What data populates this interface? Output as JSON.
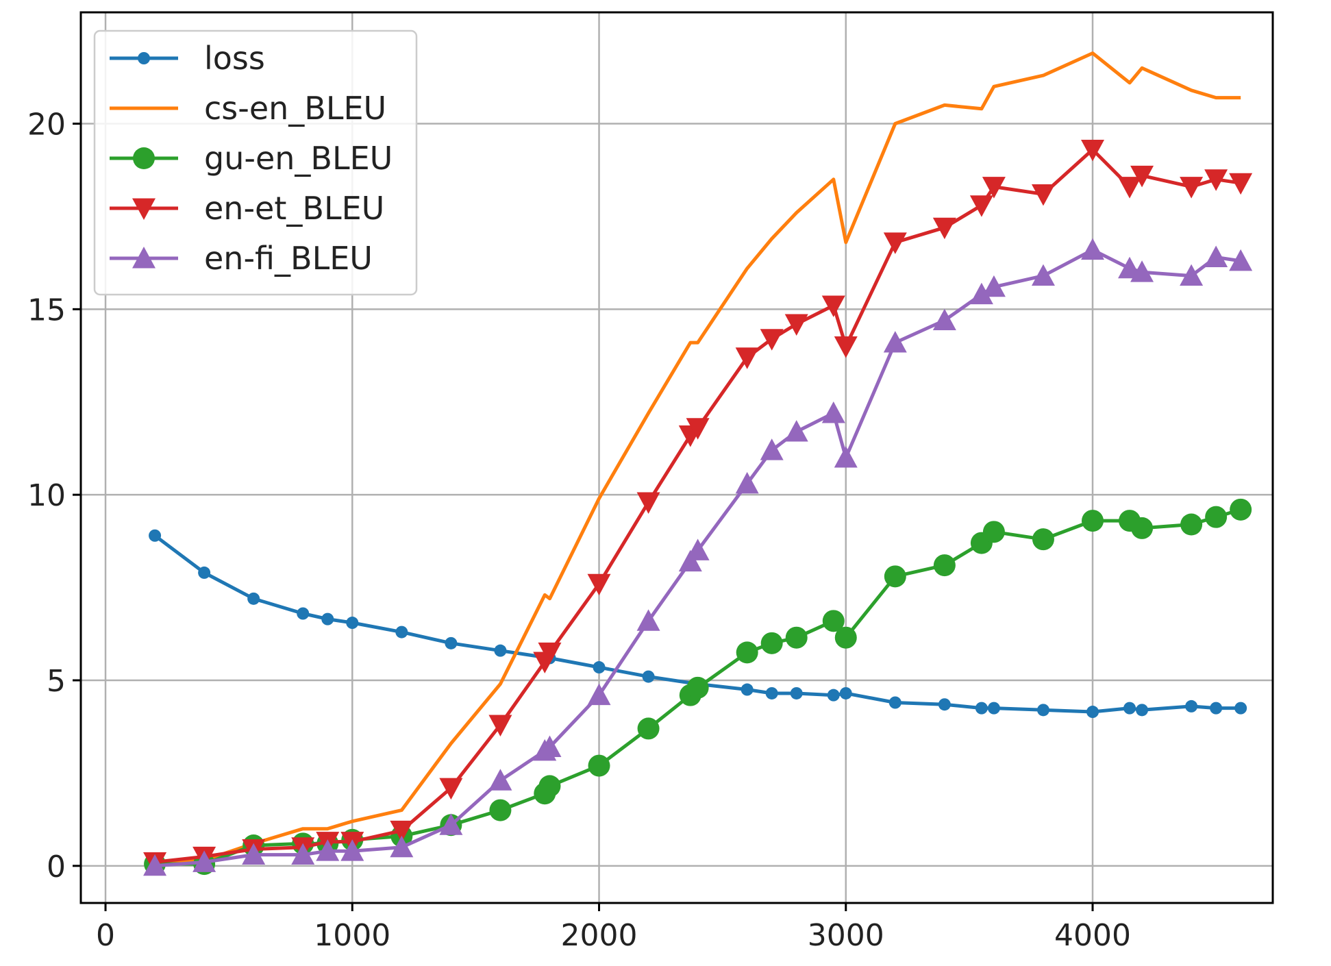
{
  "chart_data": {
    "type": "line",
    "title": "",
    "xlabel": "",
    "ylabel": "",
    "xlim": [
      -100,
      4730
    ],
    "ylim": [
      -1,
      23
    ],
    "xticks": [
      0,
      1000,
      2000,
      3000,
      4000
    ],
    "yticks": [
      0,
      5,
      10,
      15,
      20
    ],
    "xtick_labels": [
      "0",
      "1000",
      "2000",
      "3000",
      "4000"
    ],
    "ytick_labels": [
      "0",
      "5",
      "10",
      "15",
      "20"
    ],
    "grid": true,
    "legend_position": "top-left",
    "series": [
      {
        "name": "loss",
        "color": "#1f77b4",
        "marker": "dot",
        "x": [
          200,
          400,
          600,
          800,
          900,
          1000,
          1200,
          1400,
          1600,
          1800,
          2000,
          2200,
          2400,
          2600,
          2700,
          2800,
          2950,
          3000,
          3200,
          3400,
          3550,
          3600,
          3800,
          4000,
          4150,
          4200,
          4400,
          4500,
          4600
        ],
        "y": [
          8.9,
          7.9,
          7.2,
          6.8,
          6.65,
          6.55,
          6.3,
          6.0,
          5.8,
          5.6,
          5.35,
          5.1,
          4.9,
          4.75,
          4.65,
          4.65,
          4.6,
          4.65,
          4.4,
          4.35,
          4.25,
          4.25,
          4.2,
          4.15,
          4.25,
          4.2,
          4.3,
          4.25,
          4.25
        ]
      },
      {
        "name": "cs-en_BLEU",
        "color": "#ff7f0e",
        "marker": "none",
        "x": [
          200,
          400,
          600,
          800,
          900,
          1000,
          1200,
          1400,
          1600,
          1780,
          1800,
          2000,
          2200,
          2370,
          2400,
          2600,
          2700,
          2800,
          2950,
          3000,
          3200,
          3400,
          3550,
          3600,
          3800,
          4000,
          4150,
          4200,
          4400,
          4500,
          4600
        ],
        "y": [
          0.1,
          0.15,
          0.6,
          1.0,
          1.0,
          1.2,
          1.5,
          3.3,
          4.9,
          7.3,
          7.2,
          9.9,
          12.2,
          14.1,
          14.1,
          16.1,
          16.9,
          17.6,
          18.5,
          16.8,
          20.0,
          20.5,
          20.4,
          21.0,
          21.3,
          21.9,
          21.1,
          21.5,
          20.9,
          20.7,
          20.7
        ]
      },
      {
        "name": "gu-en_BLEU",
        "color": "#2ca02c",
        "marker": "circle",
        "x": [
          200,
          400,
          600,
          800,
          900,
          1000,
          1200,
          1400,
          1600,
          1780,
          1800,
          2000,
          2200,
          2370,
          2400,
          2600,
          2700,
          2800,
          2950,
          3000,
          3200,
          3400,
          3550,
          3600,
          3800,
          4000,
          4150,
          4200,
          4400,
          4500,
          4600
        ],
        "y": [
          0.05,
          0.05,
          0.55,
          0.6,
          0.6,
          0.7,
          0.8,
          1.1,
          1.5,
          1.95,
          2.15,
          2.7,
          3.7,
          4.6,
          4.8,
          5.75,
          6.0,
          6.15,
          6.6,
          6.15,
          7.8,
          8.1,
          8.7,
          9.0,
          8.8,
          9.3,
          9.3,
          9.1,
          9.2,
          9.4,
          9.6
        ]
      },
      {
        "name": "en-et_BLEU",
        "color": "#d62728",
        "marker": "triangle-down",
        "x": [
          200,
          400,
          600,
          800,
          900,
          1000,
          1200,
          1400,
          1600,
          1780,
          1800,
          2000,
          2200,
          2370,
          2400,
          2600,
          2700,
          2800,
          2950,
          3000,
          3200,
          3400,
          3550,
          3600,
          3800,
          4000,
          4150,
          4200,
          4400,
          4500,
          4600
        ],
        "y": [
          0.1,
          0.25,
          0.45,
          0.5,
          0.65,
          0.65,
          0.95,
          2.1,
          3.8,
          5.5,
          5.75,
          7.6,
          9.8,
          11.6,
          11.8,
          13.7,
          14.2,
          14.6,
          15.1,
          14.0,
          16.8,
          17.2,
          17.8,
          18.3,
          18.1,
          19.3,
          18.3,
          18.6,
          18.3,
          18.5,
          18.4
        ]
      },
      {
        "name": "en-fi_BLEU",
        "color": "#9467bd",
        "marker": "triangle-up",
        "x": [
          200,
          400,
          600,
          800,
          900,
          1000,
          1200,
          1400,
          1600,
          1780,
          1800,
          2000,
          2200,
          2370,
          2400,
          2600,
          2700,
          2800,
          2950,
          3000,
          3200,
          3400,
          3550,
          3600,
          3800,
          4000,
          4150,
          4200,
          4400,
          4500,
          4600
        ],
        "y": [
          0.0,
          0.1,
          0.3,
          0.3,
          0.4,
          0.4,
          0.5,
          1.1,
          2.3,
          3.1,
          3.2,
          4.6,
          6.6,
          8.2,
          8.5,
          10.3,
          11.2,
          11.7,
          12.2,
          11.0,
          14.1,
          14.7,
          15.4,
          15.6,
          15.9,
          16.6,
          16.1,
          16.0,
          15.9,
          16.4,
          16.3
        ]
      }
    ]
  }
}
